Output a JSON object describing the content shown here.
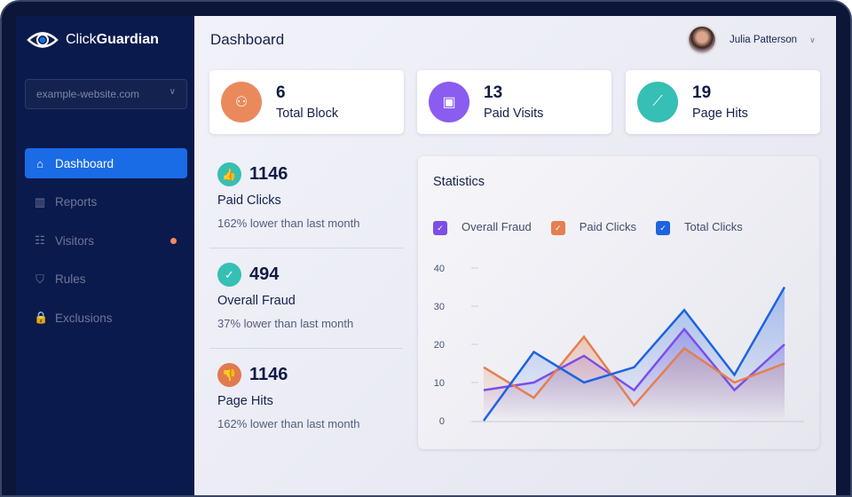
{
  "brand": {
    "name_light": "Click",
    "name_bold": "Guardian"
  },
  "site_select": {
    "value": "example-website.com"
  },
  "nav": [
    {
      "label": "Dashboard",
      "icon": "home-icon",
      "active": true
    },
    {
      "label": "Reports",
      "icon": "bar-chart-icon"
    },
    {
      "label": "Visitors",
      "icon": "visitor-list-icon",
      "badge": true
    },
    {
      "label": "Rules",
      "icon": "shield-check-icon"
    },
    {
      "label": "Exclusions",
      "icon": "lock-icon"
    }
  ],
  "header": {
    "title": "Dashboard",
    "user_name": "Julia Patterson"
  },
  "cards": [
    {
      "value": "6",
      "label": "Total Block",
      "color": "#ea8a5c",
      "icon": "blocked-user-icon"
    },
    {
      "value": "13",
      "label": "Paid Visits",
      "color": "#8a5cf0",
      "icon": "wallet-icon"
    },
    {
      "value": "19",
      "label": "Page Hits",
      "color": "#36bfb4",
      "icon": "line-chart-icon"
    }
  ],
  "stats": [
    {
      "value": "1146",
      "label": "Paid Clicks",
      "sub": "162% lower than last month",
      "color": "#36bfb4",
      "icon": "thumbs-up-icon"
    },
    {
      "value": "494",
      "label": "Overall Fraud",
      "sub": "37% lower than last month",
      "color": "#36bfb4",
      "icon": "check-circle-icon"
    },
    {
      "value": "1146",
      "label": "Page Hits",
      "sub": "162% lower than last month",
      "color": "#e07a4f",
      "icon": "thumbs-down-icon"
    }
  ],
  "chart_data": {
    "type": "line",
    "title": "Statistics",
    "ylim": [
      0,
      40
    ],
    "yticks": [
      "0",
      "10",
      "20",
      "30",
      "40"
    ],
    "x": [
      1,
      2,
      3,
      4,
      5,
      6,
      7
    ],
    "series": [
      {
        "name": "Overall Fraud",
        "color": "#7b4fe6",
        "values": [
          8,
          10,
          17,
          8,
          24,
          8,
          20
        ]
      },
      {
        "name": "Paid Clicks",
        "color": "#e57f4f",
        "values": [
          14,
          6,
          22,
          4,
          19,
          10,
          15
        ]
      },
      {
        "name": "Total Clicks",
        "color": "#1d63e0",
        "values": [
          0,
          18,
          10,
          14,
          29,
          12,
          35
        ]
      }
    ]
  }
}
